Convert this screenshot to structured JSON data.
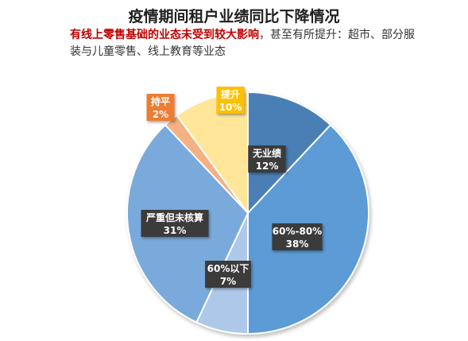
{
  "title": "疫情期间租户业绩同比下降情况",
  "subtitle_highlight": "有线上零售基础的业态未受到较大影响",
  "subtitle_rest": "，甚至有所提升：超市、部分服装与儿童零售、线上教育等业态",
  "chart_data": {
    "type": "pie",
    "title": "疫情期间租户业绩同比下降情况",
    "slices": [
      {
        "label": "无业绩",
        "value": 12,
        "value_label": "12%",
        "color": "#4a7fb5",
        "label_bg": "#3a3a3a",
        "label_fg": "#ffffff"
      },
      {
        "label": "60%-80%",
        "value": 38,
        "value_label": "38%",
        "color": "#5b9bd5",
        "label_bg": "#3a3a3a",
        "label_fg": "#ffffff"
      },
      {
        "label": "60%以下",
        "value": 7,
        "value_label": "7%",
        "color": "#adc8e8",
        "label_bg": "#3a3a3a",
        "label_fg": "#ffffff"
      },
      {
        "label": "严重但未核算",
        "value": 31,
        "value_label": "31%",
        "color": "#7aaadb",
        "label_bg": "#3a3a3a",
        "label_fg": "#ffffff"
      },
      {
        "label": "持平",
        "value": 2,
        "value_label": "2%",
        "color": "#f4b183",
        "label_bg": "#ed7d31",
        "label_fg": "#ffffff"
      },
      {
        "label": "提升",
        "value": 10,
        "value_label": "10%",
        "color": "#ffe699",
        "label_bg": "#ffc000",
        "label_fg": "#ffffff"
      }
    ]
  }
}
